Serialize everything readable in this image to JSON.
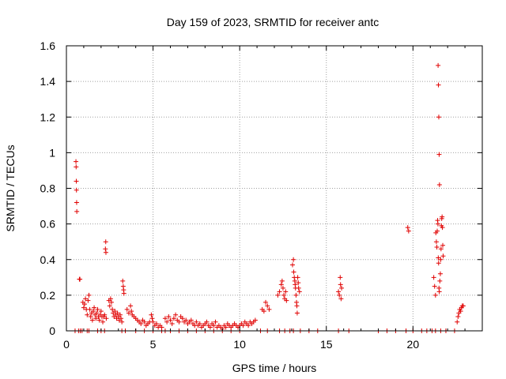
{
  "chart_data": {
    "type": "scatter",
    "title": "Day 159 of 2023, SRMTID for receiver antc",
    "xlabel": "GPS time / hours",
    "ylabel": "SRMTID / TECUs",
    "xlim": [
      0,
      24
    ],
    "ylim": [
      0,
      1.6
    ],
    "x_ticks": [
      0,
      5,
      10,
      15,
      20
    ],
    "x_tick_labels": [
      "0",
      "5",
      "10",
      "15",
      "20"
    ],
    "y_ticks": [
      0,
      0.2,
      0.4,
      0.6,
      0.8,
      1,
      1.2,
      1.4,
      1.6
    ],
    "y_tick_labels": [
      "0",
      "0.2",
      "0.4",
      "0.6",
      "0.8",
      "1",
      "1.2",
      "1.4",
      "1.6"
    ],
    "grid": true,
    "marker": "+",
    "color": "#e00000",
    "series": [
      {
        "name": "SRMTID",
        "points": [
          [
            0.55,
            0.95
          ],
          [
            0.56,
            0.92
          ],
          [
            0.57,
            0.84
          ],
          [
            0.58,
            0.79
          ],
          [
            0.59,
            0.72
          ],
          [
            0.6,
            0.67
          ],
          [
            0.5,
            0.0
          ],
          [
            0.7,
            0.0
          ],
          [
            0.8,
            0.0
          ],
          [
            0.9,
            0.0
          ],
          [
            0.75,
            0.29
          ],
          [
            0.78,
            0.29
          ],
          [
            0.95,
            0.16
          ],
          [
            1.0,
            0.13
          ],
          [
            1.05,
            0.15
          ],
          [
            1.1,
            0.18
          ],
          [
            1.15,
            0.12
          ],
          [
            1.2,
            0.09
          ],
          [
            1.25,
            0.17
          ],
          [
            1.3,
            0.2
          ],
          [
            1.35,
            0.12
          ],
          [
            1.4,
            0.08
          ],
          [
            1.45,
            0.1
          ],
          [
            1.5,
            0.06
          ],
          [
            1.55,
            0.11
          ],
          [
            1.6,
            0.13
          ],
          [
            1.65,
            0.09
          ],
          [
            1.7,
            0.07
          ],
          [
            1.75,
            0.1
          ],
          [
            1.8,
            0.12
          ],
          [
            1.85,
            0.08
          ],
          [
            1.9,
            0.06
          ],
          [
            1.95,
            0.09
          ],
          [
            2.0,
            0.11
          ],
          [
            2.05,
            0.08
          ],
          [
            2.1,
            0.05
          ],
          [
            2.15,
            0.08
          ],
          [
            2.2,
            0.09
          ],
          [
            2.25,
            0.46
          ],
          [
            2.27,
            0.5
          ],
          [
            2.28,
            0.44
          ],
          [
            2.3,
            0.07
          ],
          [
            1.2,
            0.0
          ],
          [
            1.3,
            0.0
          ],
          [
            1.8,
            0.0
          ],
          [
            2.0,
            0.0
          ],
          [
            2.2,
            0.0
          ],
          [
            2.45,
            0.17
          ],
          [
            2.5,
            0.14
          ],
          [
            2.55,
            0.18
          ],
          [
            2.6,
            0.16
          ],
          [
            2.65,
            0.12
          ],
          [
            2.7,
            0.1
          ],
          [
            2.75,
            0.08
          ],
          [
            2.8,
            0.11
          ],
          [
            2.85,
            0.09
          ],
          [
            2.9,
            0.07
          ],
          [
            2.95,
            0.1
          ],
          [
            3.0,
            0.08
          ],
          [
            3.05,
            0.06
          ],
          [
            3.1,
            0.09
          ],
          [
            3.15,
            0.07
          ],
          [
            3.2,
            0.05
          ],
          [
            3.25,
            0.28
          ],
          [
            3.28,
            0.25
          ],
          [
            3.3,
            0.23
          ],
          [
            3.32,
            0.21
          ],
          [
            3.2,
            0.0
          ],
          [
            3.4,
            0.0
          ],
          [
            3.5,
            0.12
          ],
          [
            3.6,
            0.1
          ],
          [
            3.7,
            0.14
          ],
          [
            3.75,
            0.11
          ],
          [
            3.8,
            0.09
          ],
          [
            3.9,
            0.08
          ],
          [
            4.0,
            0.07
          ],
          [
            4.1,
            0.06
          ],
          [
            4.2,
            0.05
          ],
          [
            4.3,
            0.04
          ],
          [
            4.4,
            0.06
          ],
          [
            4.5,
            0.05
          ],
          [
            4.6,
            0.03
          ],
          [
            4.7,
            0.04
          ],
          [
            4.8,
            0.05
          ],
          [
            4.9,
            0.09
          ],
          [
            4.95,
            0.07
          ],
          [
            5.0,
            0.05
          ],
          [
            5.1,
            0.03
          ],
          [
            5.2,
            0.04
          ],
          [
            5.3,
            0.02
          ],
          [
            5.4,
            0.03
          ],
          [
            5.5,
            0.02
          ],
          [
            4.0,
            0.0
          ],
          [
            4.5,
            0.0
          ],
          [
            5.0,
            0.0
          ],
          [
            5.5,
            0.0
          ],
          [
            5.7,
            0.0
          ],
          [
            5.7,
            0.07
          ],
          [
            5.8,
            0.05
          ],
          [
            5.9,
            0.08
          ],
          [
            6.0,
            0.06
          ],
          [
            6.1,
            0.04
          ],
          [
            6.2,
            0.07
          ],
          [
            6.3,
            0.09
          ],
          [
            6.4,
            0.06
          ],
          [
            6.5,
            0.05
          ],
          [
            6.6,
            0.08
          ],
          [
            6.7,
            0.07
          ],
          [
            6.8,
            0.05
          ],
          [
            6.9,
            0.06
          ],
          [
            7.0,
            0.04
          ],
          [
            7.1,
            0.05
          ],
          [
            7.2,
            0.06
          ],
          [
            7.3,
            0.04
          ],
          [
            7.4,
            0.03
          ],
          [
            7.5,
            0.05
          ],
          [
            7.6,
            0.03
          ],
          [
            7.7,
            0.04
          ],
          [
            7.8,
            0.02
          ],
          [
            7.9,
            0.03
          ],
          [
            8.0,
            0.04
          ],
          [
            8.1,
            0.05
          ],
          [
            8.2,
            0.03
          ],
          [
            8.3,
            0.02
          ],
          [
            8.4,
            0.04
          ],
          [
            8.5,
            0.03
          ],
          [
            8.6,
            0.05
          ],
          [
            8.7,
            0.02
          ],
          [
            8.8,
            0.03
          ],
          [
            8.9,
            0.02
          ],
          [
            9.0,
            0.01
          ],
          [
            9.1,
            0.03
          ],
          [
            9.2,
            0.02
          ],
          [
            9.3,
            0.04
          ],
          [
            9.4,
            0.03
          ],
          [
            9.5,
            0.02
          ],
          [
            9.6,
            0.03
          ],
          [
            9.7,
            0.04
          ],
          [
            9.8,
            0.03
          ],
          [
            9.9,
            0.02
          ],
          [
            10.0,
            0.03
          ],
          [
            10.1,
            0.04
          ],
          [
            10.2,
            0.03
          ],
          [
            10.3,
            0.05
          ],
          [
            10.4,
            0.04
          ],
          [
            10.5,
            0.03
          ],
          [
            10.6,
            0.05
          ],
          [
            10.7,
            0.04
          ],
          [
            10.8,
            0.05
          ],
          [
            10.9,
            0.06
          ],
          [
            6.0,
            0.0
          ],
          [
            6.5,
            0.0
          ],
          [
            7.0,
            0.0
          ],
          [
            7.5,
            0.0
          ],
          [
            8.0,
            0.0
          ],
          [
            8.5,
            0.0
          ],
          [
            9.0,
            0.0
          ],
          [
            9.5,
            0.0
          ],
          [
            10.0,
            0.0
          ],
          [
            11.3,
            0.12
          ],
          [
            11.4,
            0.11
          ],
          [
            11.5,
            0.16
          ],
          [
            11.6,
            0.14
          ],
          [
            11.7,
            0.12
          ],
          [
            11.2,
            0.0
          ],
          [
            11.6,
            0.0
          ],
          [
            12.2,
            0.2
          ],
          [
            12.3,
            0.22
          ],
          [
            12.4,
            0.26
          ],
          [
            12.45,
            0.28
          ],
          [
            12.5,
            0.24
          ],
          [
            12.55,
            0.2
          ],
          [
            12.6,
            0.18
          ],
          [
            12.65,
            0.22
          ],
          [
            12.7,
            0.17
          ],
          [
            12.3,
            0.0
          ],
          [
            12.6,
            0.0
          ],
          [
            12.9,
            0.0
          ],
          [
            13.05,
            0.37
          ],
          [
            13.1,
            0.4
          ],
          [
            13.12,
            0.33
          ],
          [
            13.15,
            0.3
          ],
          [
            13.18,
            0.28
          ],
          [
            13.2,
            0.26
          ],
          [
            13.22,
            0.24
          ],
          [
            13.25,
            0.2
          ],
          [
            13.28,
            0.16
          ],
          [
            13.3,
            0.14
          ],
          [
            13.32,
            0.1
          ],
          [
            13.35,
            0.3
          ],
          [
            13.38,
            0.27
          ],
          [
            13.4,
            0.24
          ],
          [
            13.45,
            0.22
          ],
          [
            13.1,
            0.0
          ],
          [
            13.5,
            0.0
          ],
          [
            14.0,
            0.0
          ],
          [
            14.5,
            0.0
          ],
          [
            15.7,
            0.22
          ],
          [
            15.75,
            0.2
          ],
          [
            15.8,
            0.3
          ],
          [
            15.82,
            0.26
          ],
          [
            15.85,
            0.18
          ],
          [
            15.88,
            0.24
          ],
          [
            15.7,
            0.0
          ],
          [
            16.3,
            0.0
          ],
          [
            18.0,
            0.0
          ],
          [
            18.5,
            0.0
          ],
          [
            19.0,
            0.0
          ],
          [
            19.6,
            0.0
          ],
          [
            20.0,
            0.0
          ],
          [
            19.7,
            0.58
          ],
          [
            19.75,
            0.56
          ],
          [
            20.5,
            0.0
          ],
          [
            20.8,
            0.0
          ],
          [
            21.1,
            0.0
          ],
          [
            21.2,
            0.3
          ],
          [
            21.25,
            0.25
          ],
          [
            21.3,
            0.2
          ],
          [
            21.32,
            0.55
          ],
          [
            21.35,
            0.5
          ],
          [
            21.38,
            0.47
          ],
          [
            21.4,
            0.56
          ],
          [
            21.42,
            0.62
          ],
          [
            21.44,
            0.6
          ],
          [
            21.46,
            0.41
          ],
          [
            21.48,
            0.38
          ],
          [
            21.5,
            0.24
          ],
          [
            21.52,
            0.22
          ],
          [
            21.55,
            0.28
          ],
          [
            21.58,
            0.32
          ],
          [
            21.6,
            0.4
          ],
          [
            21.62,
            0.46
          ],
          [
            21.64,
            0.59
          ],
          [
            21.66,
            0.63
          ],
          [
            21.68,
            0.64
          ],
          [
            21.7,
            0.58
          ],
          [
            21.72,
            0.48
          ],
          [
            21.74,
            0.42
          ],
          [
            21.45,
            1.49
          ],
          [
            21.47,
            1.38
          ],
          [
            21.49,
            1.2
          ],
          [
            21.51,
            0.99
          ],
          [
            21.53,
            0.82
          ],
          [
            21.3,
            0.0
          ],
          [
            21.6,
            0.0
          ],
          [
            21.9,
            0.0
          ],
          [
            22.4,
            0.0
          ],
          [
            22.55,
            0.05
          ],
          [
            22.6,
            0.08
          ],
          [
            22.65,
            0.1
          ],
          [
            22.7,
            0.12
          ],
          [
            22.75,
            0.11
          ],
          [
            22.8,
            0.13
          ],
          [
            22.85,
            0.14
          ],
          [
            22.9,
            0.14
          ]
        ]
      }
    ]
  }
}
